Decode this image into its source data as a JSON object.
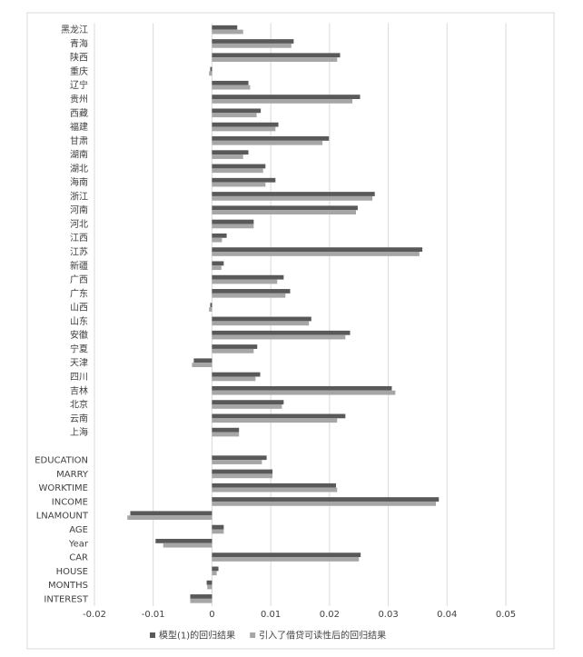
{
  "chart_data": {
    "type": "bar",
    "orientation": "horizontal",
    "categories": [
      "黑龙江",
      "青海",
      "陕西",
      "重庆",
      "辽宁",
      "贵州",
      "西藏",
      "福建",
      "甘肃",
      "湖南",
      "湖北",
      "海南",
      "浙江",
      "河南",
      "河北",
      "江西",
      "江苏",
      "新疆",
      "广西",
      "广东",
      "山西",
      "山东",
      "安徽",
      "宁夏",
      "天津",
      "四川",
      "吉林",
      "北京",
      "云南",
      "上海",
      null,
      "EDUCATION",
      "MARRY",
      "WORKTIME",
      "INCOME",
      "LNAMOUNT",
      "AGE",
      "Year",
      "CAR",
      "HOUSE",
      "MONTHS",
      "INTEREST"
    ],
    "series": [
      {
        "name": "模型(1)的回归结果",
        "color": "#595959",
        "values": [
          0.0043,
          0.0139,
          0.0218,
          -0.0003,
          0.0062,
          0.0252,
          0.0083,
          0.0113,
          0.0199,
          0.0062,
          0.0091,
          0.0108,
          0.0277,
          0.0248,
          0.0071,
          0.0025,
          0.0358,
          0.002,
          0.0122,
          0.0133,
          -0.0003,
          0.0169,
          0.0235,
          0.0077,
          -0.0031,
          0.0082,
          0.0306,
          0.0122,
          0.0227,
          0.0046,
          null,
          0.0093,
          0.0103,
          0.0211,
          0.0386,
          -0.0139,
          0.002,
          -0.0096,
          0.0253,
          0.0011,
          -0.0009,
          -0.0037
        ]
      },
      {
        "name": "引入了借贷可读性后的回归结果",
        "color": "#a6a6a6",
        "values": [
          0.0053,
          0.0135,
          0.0213,
          -0.0005,
          0.0065,
          0.0239,
          0.0076,
          0.0108,
          0.0188,
          0.0053,
          0.0087,
          0.0091,
          0.0273,
          0.0245,
          0.0071,
          0.0017,
          0.0353,
          0.0016,
          0.0111,
          0.0125,
          -0.0005,
          0.0165,
          0.0227,
          0.0071,
          -0.0034,
          0.0074,
          0.0312,
          0.0119,
          0.0213,
          0.0046,
          null,
          0.0085,
          0.0103,
          0.0213,
          0.0381,
          -0.0144,
          0.002,
          -0.0083,
          0.025,
          0.0008,
          -0.0008,
          -0.0037
        ]
      }
    ],
    "xlim": [
      -0.02,
      0.05
    ],
    "xticks": [
      -0.02,
      -0.01,
      0,
      0.01,
      0.02,
      0.03,
      0.04,
      0.05
    ],
    "grid": true,
    "legend": "bottom"
  }
}
